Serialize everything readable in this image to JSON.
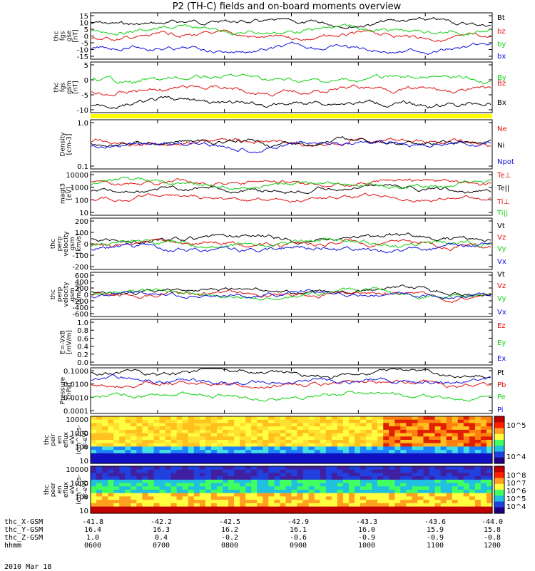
{
  "title": "P2 (TH-C) fields and on-board moments overview",
  "colors": {
    "black": "#000000",
    "red": "#e01010",
    "green": "#10d010",
    "blue": "#1010e0",
    "yellow": "#ffff00"
  },
  "chart_data": [
    {
      "type": "line",
      "id": "fgs_gse",
      "ylabel": [
        "thc",
        "fgs",
        "gse",
        "[nT]"
      ],
      "yticks": [
        "15",
        "10",
        "5",
        "0",
        "-5",
        "-10",
        "-15"
      ],
      "ylim": [
        -15,
        15
      ],
      "series": [
        {
          "name": "Bt",
          "color": "black"
        },
        {
          "name": "bz",
          "color": "red"
        },
        {
          "name": "by",
          "color": "green"
        },
        {
          "name": "bx",
          "color": "blue"
        }
      ]
    },
    {
      "type": "line",
      "id": "fgs_gsm",
      "ylabel": [
        "thc",
        "fgs",
        "gsm",
        "[nT]"
      ],
      "yticks": [
        "5",
        "0",
        "-5",
        "-10"
      ],
      "ylim": [
        -15,
        10
      ],
      "series": [
        {
          "name": "By",
          "color": "green"
        },
        {
          "name": "Bz",
          "color": "red"
        },
        {
          "name": "Bx",
          "color": "black"
        }
      ]
    },
    {
      "type": "line",
      "id": "density",
      "ylabel": [
        "Density",
        "[cm-3]"
      ],
      "yticks": [
        "1.0",
        "0.1"
      ],
      "ylim": [
        0.1,
        1.5
      ],
      "log": true,
      "series": [
        {
          "name": "Ne",
          "color": "red"
        },
        {
          "name": "Ni",
          "color": "black"
        },
        {
          "name": "Npot",
          "color": "blue"
        }
      ]
    },
    {
      "type": "line",
      "id": "temp",
      "ylabel": [
        "magt3",
        "[eV]"
      ],
      "yticks": [
        "10000",
        "1000",
        "100",
        "10"
      ],
      "ylim": [
        10,
        10000
      ],
      "log": true,
      "series": [
        {
          "name": "Te⊥",
          "color": "red"
        },
        {
          "name": "Te||",
          "color": "black"
        },
        {
          "name": "Ti⊥",
          "color": "red"
        },
        {
          "name": "Ti||",
          "color": "green"
        }
      ]
    },
    {
      "type": "line",
      "id": "vperp",
      "ylabel": [
        "thc",
        "perp",
        "velocity",
        "gsm",
        "[km/s]"
      ],
      "yticks": [
        "200",
        "100",
        "0",
        "-100",
        "-200"
      ],
      "ylim": [
        -200,
        200
      ],
      "series": [
        {
          "name": "Vt",
          "color": "black"
        },
        {
          "name": "Vz",
          "color": "red"
        },
        {
          "name": "Vy",
          "color": "green"
        },
        {
          "name": "Vx",
          "color": "blue"
        }
      ]
    },
    {
      "type": "line",
      "id": "vperpe",
      "ylabel": [
        "thc",
        "perp",
        "velocity",
        "gsm",
        "[km/s]"
      ],
      "yticks": [
        "600",
        "400",
        "200",
        "0",
        "-200",
        "-400",
        "-600"
      ],
      "ylim": [
        -600,
        600
      ],
      "series": [
        {
          "name": "Vt",
          "color": "black"
        },
        {
          "name": "Vz",
          "color": "red"
        },
        {
          "name": "Vy",
          "color": "green"
        },
        {
          "name": "Vx",
          "color": "blue"
        }
      ]
    },
    {
      "type": "line",
      "id": "efield",
      "ylabel": [
        "E=-VxB",
        "[mV/m]"
      ],
      "yticks": [
        "1.0",
        "0.8",
        "0.6",
        "0.4",
        "0.2",
        "0.0"
      ],
      "ylim": [
        0,
        1
      ],
      "series": [
        {
          "name": "Ez",
          "color": "red"
        },
        {
          "name": "Ey",
          "color": "green"
        },
        {
          "name": "Ex",
          "color": "blue"
        }
      ]
    },
    {
      "type": "line",
      "id": "pressure",
      "ylabel": [
        "Pressure",
        "[nPa]"
      ],
      "yticks": [
        "0.1000",
        "0.0100",
        "0.0010",
        "0.0001"
      ],
      "ylim": [
        0.0001,
        0.1
      ],
      "log": true,
      "series": [
        {
          "name": "Pt",
          "color": "black"
        },
        {
          "name": "Pb",
          "color": "red"
        },
        {
          "name": "Pe",
          "color": "green"
        },
        {
          "name": "Pi",
          "color": "blue"
        }
      ]
    },
    {
      "type": "heatmap",
      "id": "peir",
      "ylabel": [
        "thc",
        "peir",
        "en",
        "eflux",
        "eV",
        "(cm^2-s-",
        "sr-eV)"
      ],
      "yticks": [
        "10000",
        "1000",
        "100",
        "10"
      ],
      "ylim": [
        10,
        20000
      ],
      "log": true,
      "colorbar": [
        "10^5",
        "10^4"
      ]
    },
    {
      "type": "heatmap",
      "id": "peer",
      "ylabel": [
        "thc",
        "peer",
        "en",
        "eflux",
        "eV",
        "(cm^2-s-",
        "sr-eV)"
      ],
      "yticks": [
        "10000",
        "1000",
        "100",
        "10"
      ],
      "ylim": [
        10,
        20000
      ],
      "log": true,
      "colorbar": [
        "10^8",
        "10^7",
        "10^6",
        "10^5",
        "10^4"
      ]
    }
  ],
  "footer": {
    "rows": [
      {
        "label": "thc_X-GSM",
        "values": [
          "-41.8",
          "-42.2",
          "-42.5",
          "-42.9",
          "-43.3",
          "-43.6",
          "-44.0"
        ]
      },
      {
        "label": "thc_Y-GSM",
        "values": [
          "16.4",
          "16.3",
          "16.2",
          "16.1",
          "16.0",
          "15.9",
          "15.8"
        ]
      },
      {
        "label": "thc_Z-GSM",
        "values": [
          "1.0",
          "0.4",
          "-0.2",
          "-0.6",
          "-0.9",
          "-0.9",
          "-0.8"
        ]
      },
      {
        "label": "hhmm",
        "values": [
          "0600",
          "0700",
          "0800",
          "0900",
          "1000",
          "1100",
          "1200"
        ]
      }
    ],
    "date": "2010 Mar 18"
  }
}
